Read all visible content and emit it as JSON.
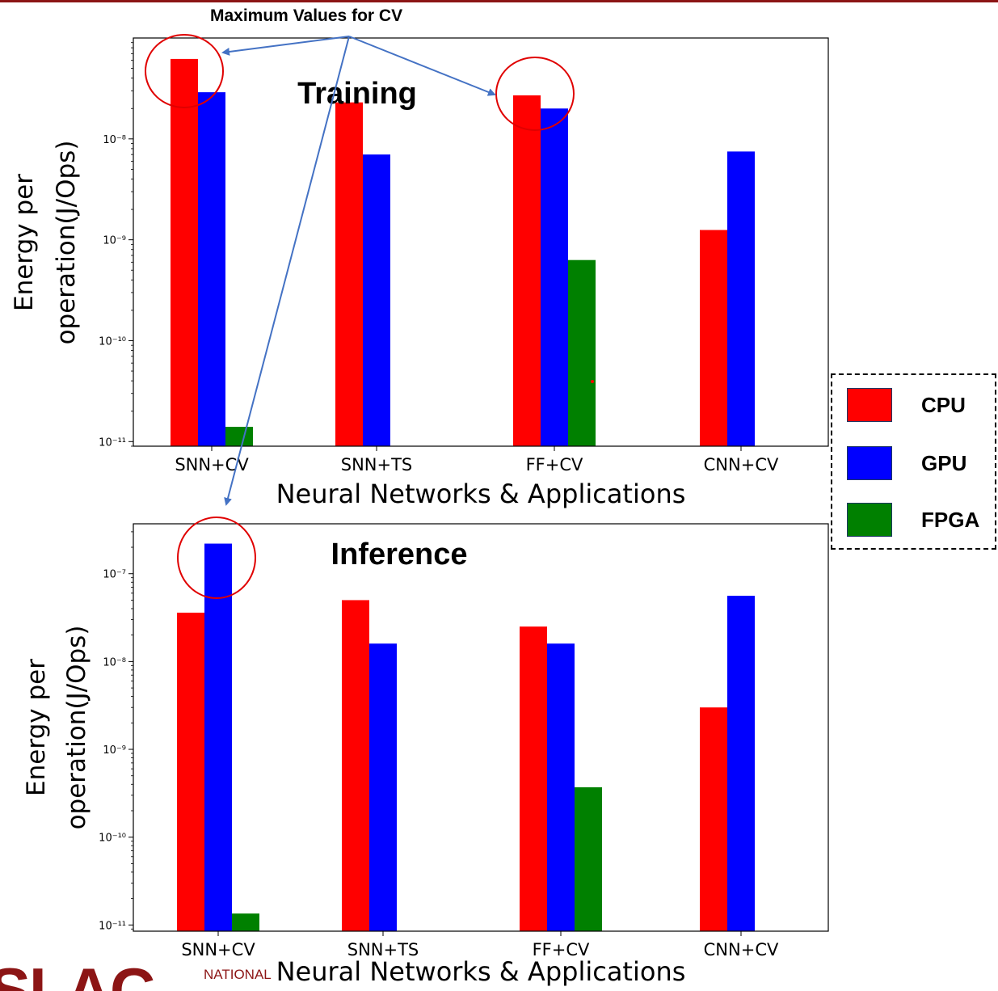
{
  "annotation": {
    "text": "Maximum Values for CV"
  },
  "colors": {
    "cpu": "#ff0000",
    "gpu": "#0000ff",
    "fpga": "#008000",
    "arrow": "#4472c4",
    "circle": "#e00000"
  },
  "legend": {
    "items": [
      {
        "label": "CPU",
        "color": "#ff0000"
      },
      {
        "label": "GPU",
        "color": "#0000ff"
      },
      {
        "label": "FPGA",
        "color": "#008000"
      }
    ]
  },
  "logo": {
    "text": "SLAC",
    "sub": "NATIONAL"
  },
  "chart_data": [
    {
      "type": "bar",
      "title": "Training",
      "xlabel": "Neural Networks & Applications",
      "ylabel": [
        "Energy per",
        "operation(J/Ops)"
      ],
      "yscale": "log",
      "ylim": [
        9e-12,
        1e-07
      ],
      "yticks": [
        {
          "value": 1e-11,
          "label": "10⁻¹¹"
        },
        {
          "value": 1e-10,
          "label": "10⁻¹⁰"
        },
        {
          "value": 1e-09,
          "label": "10⁻⁹"
        },
        {
          "value": 1e-08,
          "label": "10⁻⁸"
        }
      ],
      "categories": [
        "SNN+CV",
        "SNN+TS",
        "FF+CV",
        "CNN+CV"
      ],
      "series": [
        {
          "name": "CPU",
          "values": [
            6.2e-08,
            2.3e-08,
            2.7e-08,
            1.25e-09
          ]
        },
        {
          "name": "GPU",
          "values": [
            2.9e-08,
            7e-09,
            2e-08,
            7.5e-09
          ]
        },
        {
          "name": "FPGA",
          "values": [
            1.4e-11,
            null,
            6.3e-10,
            null
          ]
        }
      ]
    },
    {
      "type": "bar",
      "title": "Inference",
      "xlabel": "Neural Networks & Applications",
      "ylabel": [
        "Energy per",
        "operation(J/Ops)"
      ],
      "yscale": "log",
      "ylim": [
        8.5e-12,
        3.7e-07
      ],
      "yticks": [
        {
          "value": 1e-11,
          "label": "10⁻¹¹"
        },
        {
          "value": 1e-10,
          "label": "10⁻¹⁰"
        },
        {
          "value": 1e-09,
          "label": "10⁻⁹"
        },
        {
          "value": 1e-08,
          "label": "10⁻⁸"
        },
        {
          "value": 1e-07,
          "label": "10⁻⁷"
        }
      ],
      "categories": [
        "SNN+CV",
        "SNN+TS",
        "FF+CV",
        "CNN+CV"
      ],
      "series": [
        {
          "name": "CPU",
          "values": [
            3.6e-08,
            5e-08,
            2.5e-08,
            3e-09
          ]
        },
        {
          "name": "GPU",
          "values": [
            2.2e-07,
            1.6e-08,
            1.6e-08,
            5.6e-08
          ]
        },
        {
          "name": "FPGA",
          "values": [
            1.35e-11,
            null,
            3.7e-10,
            null
          ]
        }
      ]
    }
  ]
}
